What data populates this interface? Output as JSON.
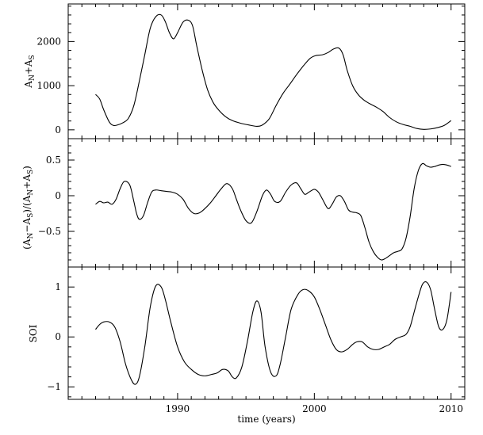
{
  "chart_data": [
    {
      "type": "line",
      "ylabel": "A_N+A_S",
      "ylabel_parts": {
        "a1": "A",
        "s1": "N",
        "plus": "+",
        "a2": "A",
        "s2": "S"
      },
      "xlim": [
        1982,
        2011
      ],
      "ylim": [
        -200,
        2850
      ],
      "yticks": [
        0,
        1000,
        2000
      ],
      "ytick_labels": [
        "0",
        "1000",
        "2000"
      ],
      "series": [
        {
          "x": [
            1984.0,
            1984.3,
            1984.6,
            1985.0,
            1985.3,
            1985.6,
            1986.0,
            1986.4,
            1986.8,
            1987.2,
            1987.6,
            1988.0,
            1988.4,
            1988.8,
            1989.1,
            1989.4,
            1989.7,
            1990.0,
            1990.4,
            1990.8,
            1991.1,
            1991.4,
            1991.8,
            1992.2,
            1992.6,
            1993.0,
            1993.5,
            1994.0,
            1994.6,
            1995.2,
            1995.8,
            1996.2,
            1996.7,
            1997.2,
            1997.7,
            1998.2,
            1998.7,
            1999.2,
            1999.7,
            2000.1,
            2000.6,
            2001.0,
            2001.4,
            2001.8,
            2002.1,
            2002.4,
            2002.8,
            2003.2,
            2003.6,
            2004.0,
            2004.5,
            2005.0,
            2005.5,
            2006.0,
            2006.5,
            2007.0,
            2007.5,
            2008.0,
            2008.5,
            2009.0,
            2009.5,
            2010.0
          ],
          "y": [
            800,
            700,
            450,
            180,
            100,
            110,
            160,
            260,
            550,
            1100,
            1700,
            2300,
            2560,
            2600,
            2450,
            2200,
            2060,
            2200,
            2440,
            2480,
            2350,
            1900,
            1350,
            900,
            620,
            450,
            300,
            210,
            150,
            110,
            80,
            110,
            250,
            550,
            820,
            1030,
            1250,
            1450,
            1620,
            1680,
            1700,
            1750,
            1830,
            1850,
            1700,
            1350,
            1000,
            800,
            680,
            600,
            520,
            420,
            280,
            180,
            120,
            80,
            30,
            10,
            20,
            50,
            100,
            210
          ]
        }
      ]
    },
    {
      "type": "line",
      "ylabel": "(A_N-A_S)/(A_N+A_S)",
      "ylabel_parts": {
        "open1": "(A",
        "s1": "N",
        "minus": "−A",
        "s2": "S",
        "mid": ")/(A",
        "s3": "N",
        "plus": "+A",
        "s4": "S",
        "close": ")"
      },
      "xlim": [
        1982,
        2011
      ],
      "ylim": [
        -1.0,
        0.8
      ],
      "yticks": [
        -0.5,
        0,
        0.5
      ],
      "ytick_labels": [
        "−0.5",
        "0",
        "0.5"
      ],
      "series": [
        {
          "x": [
            1984.0,
            1984.3,
            1984.6,
            1984.9,
            1985.2,
            1985.5,
            1985.8,
            1986.1,
            1986.5,
            1986.8,
            1987.0,
            1987.2,
            1987.5,
            1987.8,
            1988.1,
            1988.4,
            1988.8,
            1989.2,
            1989.6,
            1990.0,
            1990.4,
            1990.8,
            1991.2,
            1991.6,
            1992.0,
            1992.4,
            1992.8,
            1993.2,
            1993.6,
            1994.0,
            1994.3,
            1994.6,
            1995.0,
            1995.4,
            1995.8,
            1996.2,
            1996.5,
            1996.8,
            1997.1,
            1997.5,
            1997.9,
            1998.3,
            1998.7,
            1999.0,
            1999.3,
            1999.6,
            2000.0,
            2000.3,
            2000.6,
            2001.0,
            2001.3,
            2001.6,
            2001.9,
            2002.2,
            2002.5,
            2002.8,
            2003.1,
            2003.4,
            2003.7,
            2004.0,
            2004.3,
            2004.6,
            2004.9,
            2005.2,
            2005.5,
            2005.8,
            2006.1,
            2006.4,
            2006.7,
            2007.0,
            2007.3,
            2007.6,
            2007.9,
            2008.2,
            2008.5,
            2008.8,
            2009.1,
            2009.4,
            2009.7,
            2010.0
          ],
          "y": [
            -0.12,
            -0.08,
            -0.1,
            -0.09,
            -0.12,
            -0.05,
            0.1,
            0.2,
            0.15,
            -0.08,
            -0.25,
            -0.33,
            -0.28,
            -0.1,
            0.05,
            0.08,
            0.07,
            0.06,
            0.05,
            0.02,
            -0.05,
            -0.18,
            -0.25,
            -0.24,
            -0.18,
            -0.1,
            0.0,
            0.1,
            0.17,
            0.1,
            -0.05,
            -0.2,
            -0.35,
            -0.38,
            -0.22,
            0.0,
            0.08,
            0.02,
            -0.08,
            -0.08,
            0.05,
            0.15,
            0.18,
            0.1,
            0.02,
            0.05,
            0.09,
            0.05,
            -0.05,
            -0.18,
            -0.12,
            -0.02,
            0.0,
            -0.08,
            -0.2,
            -0.23,
            -0.24,
            -0.28,
            -0.45,
            -0.65,
            -0.78,
            -0.86,
            -0.9,
            -0.88,
            -0.84,
            -0.8,
            -0.78,
            -0.75,
            -0.6,
            -0.3,
            0.1,
            0.35,
            0.45,
            0.42,
            0.4,
            0.41,
            0.43,
            0.44,
            0.43,
            0.41
          ],
          "note": ""
        }
      ]
    },
    {
      "type": "line",
      "xlabel": "time (years)",
      "ylabel": "SOI",
      "xlim": [
        1982,
        2011
      ],
      "ylim": [
        -1.25,
        1.4
      ],
      "xticks": [
        1990,
        2000,
        2010
      ],
      "xtick_labels": [
        "1990",
        "2000",
        "2010"
      ],
      "yticks": [
        -1,
        0,
        1
      ],
      "ytick_labels": [
        "−1",
        "0",
        "1"
      ],
      "series": [
        {
          "x": [
            1984.0,
            1984.3,
            1984.6,
            1985.0,
            1985.4,
            1985.8,
            1986.2,
            1986.6,
            1986.9,
            1987.2,
            1987.6,
            1988.0,
            1988.4,
            1988.8,
            1989.1,
            1989.5,
            1990.0,
            1990.5,
            1991.0,
            1991.5,
            1992.0,
            1992.5,
            1992.9,
            1993.3,
            1993.7,
            1994.0,
            1994.3,
            1994.7,
            1995.1,
            1995.5,
            1995.8,
            1996.1,
            1996.4,
            1996.8,
            1997.2,
            1997.5,
            1997.9,
            1998.3,
            1998.8,
            1999.2,
            1999.6,
            2000.0,
            2000.4,
            2000.8,
            2001.2,
            2001.6,
            2002.0,
            2002.4,
            2002.8,
            2003.1,
            2003.5,
            2003.9,
            2004.3,
            2004.7,
            2005.1,
            2005.5,
            2005.9,
            2006.3,
            2006.7,
            2007.0,
            2007.3,
            2007.6,
            2007.9,
            2008.2,
            2008.5,
            2008.8,
            2009.1,
            2009.4,
            2009.7,
            2010.0
          ],
          "y": [
            0.15,
            0.25,
            0.3,
            0.3,
            0.2,
            -0.1,
            -0.55,
            -0.85,
            -0.95,
            -0.8,
            -0.2,
            0.6,
            1.02,
            1.0,
            0.75,
            0.3,
            -0.2,
            -0.5,
            -0.65,
            -0.75,
            -0.78,
            -0.75,
            -0.72,
            -0.65,
            -0.68,
            -0.8,
            -0.82,
            -0.6,
            -0.1,
            0.5,
            0.72,
            0.5,
            -0.2,
            -0.7,
            -0.78,
            -0.55,
            0.0,
            0.55,
            0.85,
            0.95,
            0.92,
            0.8,
            0.55,
            0.25,
            -0.05,
            -0.25,
            -0.3,
            -0.25,
            -0.15,
            -0.1,
            -0.1,
            -0.2,
            -0.25,
            -0.25,
            -0.2,
            -0.15,
            -0.05,
            0.0,
            0.05,
            0.2,
            0.5,
            0.8,
            1.05,
            1.1,
            0.95,
            0.55,
            0.2,
            0.15,
            0.35,
            0.9
          ]
        }
      ]
    }
  ]
}
